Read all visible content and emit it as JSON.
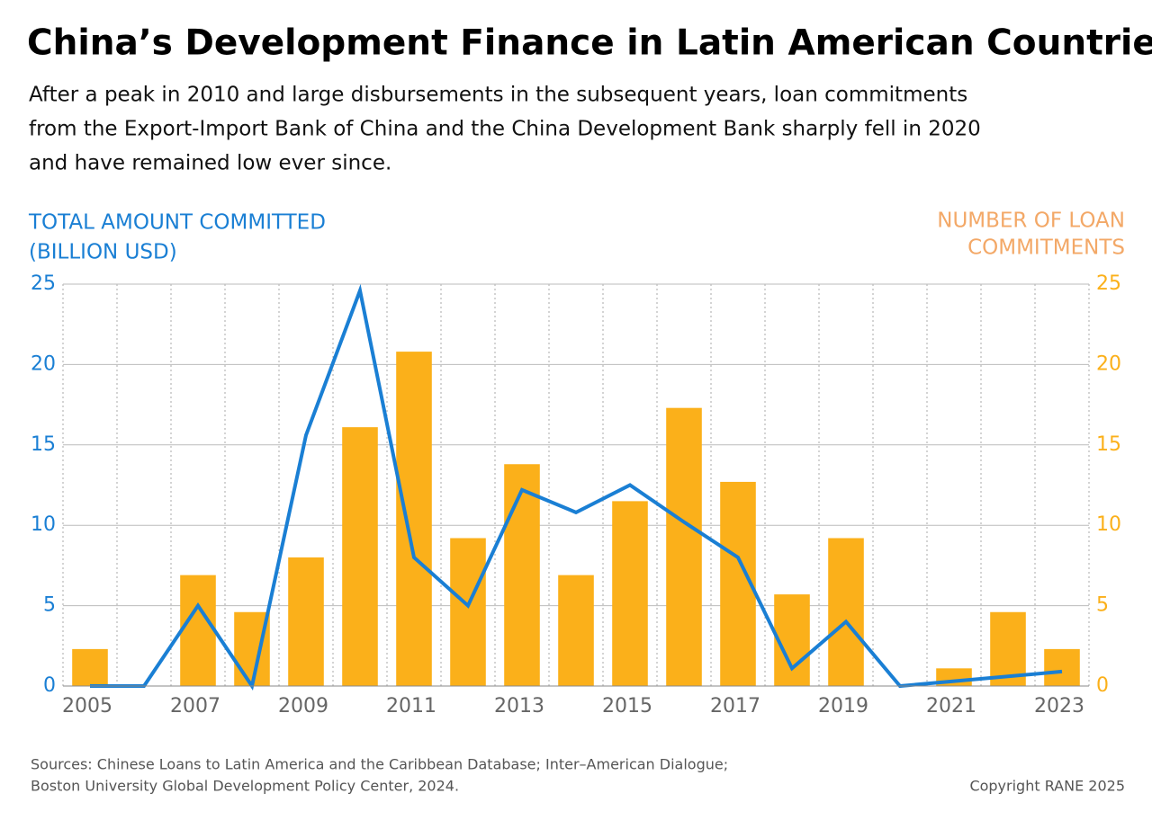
{
  "chart_data": {
    "type": "bar_line",
    "title": "China’s Development Finance in Latin American Countries",
    "subtitle": [
      "After a peak in 2010 and large disbursements in the subsequent years, loan commitments",
      "from the Export-Import Bank of China and the China Development Bank sharply fell in 2020",
      "and have remained low ever since."
    ],
    "y_label": [
      "TOTAL AMOUNT COMMITTED",
      "(BILLION USD)"
    ],
    "y2_label": [
      "NUMBER OF LOAN",
      "COMMITMENTS"
    ],
    "categories": [
      "2005",
      null,
      "2007",
      null,
      "2009",
      null,
      "2011",
      null,
      "2013",
      null,
      "2015",
      null,
      "2017",
      null,
      "2019",
      null,
      "2021",
      null,
      "2023"
    ],
    "series": [
      {
        "name": "Number of loan commitments",
        "type": "bar",
        "axis": "y2",
        "color": "#fbb01a",
        "values": [
          2.3,
          0,
          6.9,
          4.6,
          8.0,
          16.1,
          20.8,
          9.2,
          13.8,
          6.9,
          11.5,
          17.3,
          12.7,
          5.7,
          9.2,
          0,
          1.1,
          4.6,
          2.3
        ]
      },
      {
        "name": "Total amount committed",
        "type": "line",
        "axis": "y",
        "color": "#1a7fd4",
        "values": [
          0,
          0,
          5.0,
          0,
          15.6,
          24.6,
          8.0,
          5.0,
          12.2,
          10.8,
          12.5,
          10.2,
          8.0,
          1.1,
          4.0,
          0,
          0.3,
          0.6,
          0.9
        ]
      }
    ],
    "ylim": [
      0,
      25
    ],
    "yticks": [
      0,
      5,
      10,
      15,
      20,
      25
    ],
    "y2lim": [
      0,
      25
    ],
    "y2ticks": [
      0,
      5,
      10,
      15,
      20,
      25
    ],
    "grid": true,
    "sources": [
      "Sources: Chinese Loans to Latin America and the Caribbean Database; Inter–American Dialogue;",
      "Boston University Global Development Policy Center, 2024."
    ],
    "copyright": "Copyright RANE 2025"
  }
}
